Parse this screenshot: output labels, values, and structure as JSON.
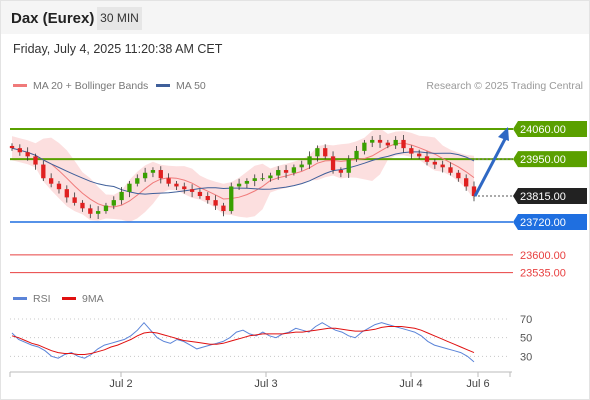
{
  "header": {
    "title": "Dax (Eurex)",
    "timeframe": "30 MIN"
  },
  "datetime": "Friday, July 4, 2025 11:20:38 AM CET",
  "legend": {
    "ma20_label": "MA 20 + Bollinger Bands",
    "ma50_label": "MA 50",
    "credit": "Research © 2025 Trading Central",
    "rsi_label": "RSI",
    "rsi_ma_label": "9MA"
  },
  "colors": {
    "resistance": "#5aa000",
    "support": "#1f6fe0",
    "target_low": "#e84040",
    "ma20": "#f07a7a",
    "ma50": "#3f5f9a",
    "band_fill": "#fbd9d9",
    "candle_up": "#39a000",
    "candle_down": "#e02020",
    "rsi": "#5b84d8",
    "rsi_ma": "#e01010",
    "last_price": "#222222"
  },
  "chart_data": {
    "type": "candlestick",
    "instrument": "Dax (Eurex)",
    "timeframe": "30 MIN",
    "x_ticks": [
      "Jul 2",
      "Jul 3",
      "Jul 4",
      "Jul 6"
    ],
    "levels": [
      {
        "label": "24060.00",
        "value": 24060,
        "kind": "resistance"
      },
      {
        "label": "23950.00",
        "value": 23950,
        "kind": "resistance"
      },
      {
        "label": "23815.00",
        "value": 23815,
        "kind": "last"
      },
      {
        "label": "23720.00",
        "value": 23720,
        "kind": "support"
      },
      {
        "label": "23600.00",
        "value": 23600,
        "kind": "target"
      },
      {
        "label": "23535.00",
        "value": 23535,
        "kind": "target"
      }
    ],
    "close_path": [
      23990,
      23975,
      23960,
      23930,
      23880,
      23860,
      23840,
      23810,
      23790,
      23770,
      23750,
      23760,
      23780,
      23800,
      23830,
      23860,
      23880,
      23900,
      23910,
      23880,
      23860,
      23850,
      23840,
      23830,
      23815,
      23800,
      23780,
      23760,
      23850,
      23860,
      23870,
      23880,
      23880,
      23890,
      23910,
      23900,
      23920,
      23930,
      23960,
      23990,
      23960,
      23910,
      23900,
      23950,
      23980,
      24010,
      24020,
      24010,
      24000,
      24020,
      23990,
      23970,
      23960,
      23940,
      23930,
      23920,
      23900,
      23880,
      23850,
      23815
    ],
    "rsi": {
      "levels": [
        70,
        50,
        30
      ],
      "range": [
        10,
        85
      ],
      "rsi_values": [
        55,
        48,
        45,
        42,
        40,
        36,
        30,
        28,
        32,
        34,
        30,
        28,
        32,
        38,
        42,
        44,
        46,
        48,
        52,
        58,
        66,
        58,
        50,
        46,
        44,
        48,
        46,
        42,
        38,
        40,
        42,
        44,
        46,
        50,
        56,
        58,
        54,
        52,
        56,
        52,
        50,
        54,
        56,
        60,
        58,
        56,
        62,
        66,
        62,
        58,
        56,
        52,
        50,
        56,
        60,
        64,
        66,
        64,
        62,
        60,
        58,
        56,
        52,
        46,
        42,
        40,
        38,
        36,
        34,
        30,
        24
      ],
      "ma_values": [
        52,
        50,
        47,
        44,
        42,
        39,
        36,
        34,
        33,
        33,
        32,
        32,
        33,
        35,
        37,
        40,
        42,
        45,
        48,
        52,
        55,
        56,
        55,
        53,
        51,
        49,
        47,
        46,
        45,
        44,
        43,
        43,
        44,
        46,
        48,
        50,
        52,
        53,
        54,
        54,
        54,
        54,
        55,
        56,
        56,
        57,
        58,
        59,
        60,
        60,
        59,
        58,
        57,
        57,
        58,
        59,
        61,
        62,
        62,
        62,
        61,
        60,
        58,
        55,
        52,
        49,
        46,
        43,
        40,
        37,
        34
      ]
    }
  }
}
